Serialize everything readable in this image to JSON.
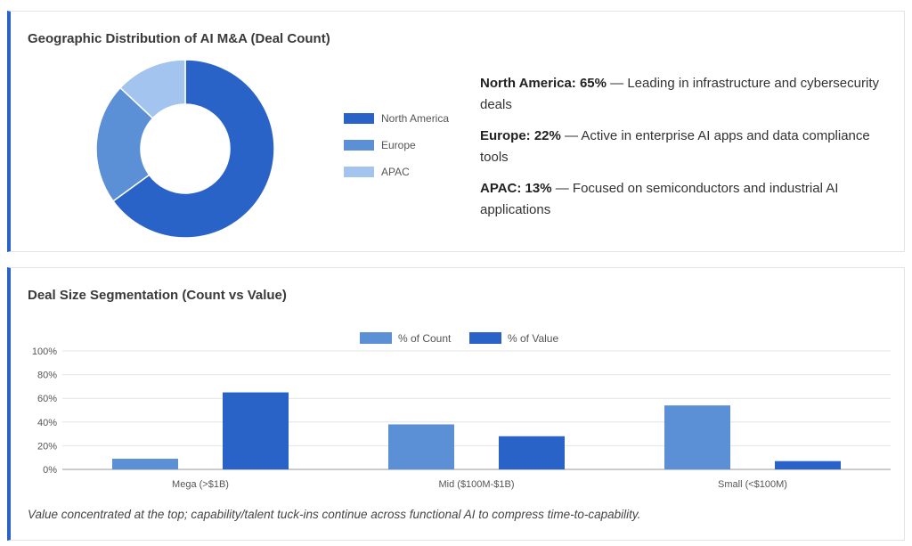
{
  "geo_card": {
    "title": "Geographic Distribution of AI M&A (Deal Count)",
    "insights": [
      {
        "label": "North America: 65%",
        "text": " — Leading in infrastructure and cybersecurity deals"
      },
      {
        "label": "Europe: 22%",
        "text": " — Active in enterprise AI apps and data compliance tools"
      },
      {
        "label": "APAC: 13%",
        "text": " — Focused on semiconductors and industrial AI applications"
      }
    ]
  },
  "size_card": {
    "title": "Deal Size Segmentation (Count vs Value)",
    "note": "Value concentrated at the top; capability/talent tuck-ins continue across functional AI to compress time-to-capability."
  },
  "chart_data": [
    {
      "type": "pie",
      "donut": true,
      "labels": [
        "North America",
        "Europe",
        "APAC"
      ],
      "values": [
        65,
        22,
        13
      ],
      "colors": [
        "#2a63c7",
        "#5b8fd6",
        "#a3c4ef"
      ],
      "legend": "right"
    },
    {
      "type": "bar",
      "categories": [
        "Mega (>$1B)",
        "Mid ($100M-$1B)",
        "Small (<$100M)"
      ],
      "series": [
        {
          "name": "% of Count",
          "values": [
            9,
            38,
            54
          ],
          "color": "#5b8fd6"
        },
        {
          "name": "% of Value",
          "values": [
            65,
            28,
            7
          ],
          "color": "#2a63c7"
        }
      ],
      "yticks": [
        "0%",
        "20%",
        "40%",
        "60%",
        "80%",
        "100%"
      ],
      "ylim": [
        0,
        100
      ],
      "grid": true,
      "legend": "top"
    }
  ]
}
